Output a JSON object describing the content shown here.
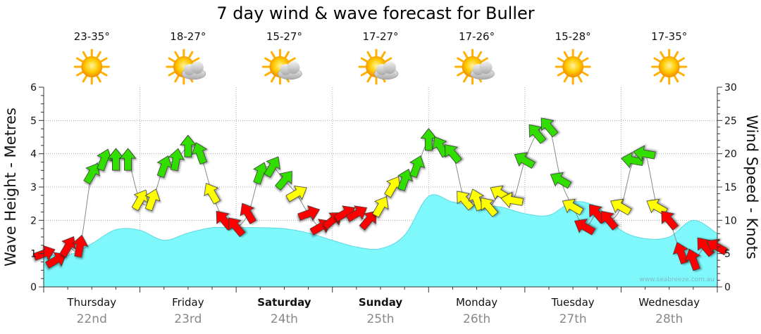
{
  "chart_data": {
    "type": "area",
    "title": "7 day wind & wave forecast for Buller",
    "ylabel": "Wave Height - Metres",
    "y2label": "Wind Speed - Knots",
    "ylim": [
      0,
      6
    ],
    "y2lim": [
      0,
      30
    ],
    "yticks": [
      "0",
      "1",
      "2",
      "3",
      "4",
      "5",
      "6"
    ],
    "y2ticks": [
      "0",
      "5",
      "10",
      "15",
      "20",
      "25",
      "30"
    ],
    "days": [
      {
        "name": "Thursday",
        "date": "22nd",
        "temp": "23-35°",
        "weather": "sunny",
        "bold": false
      },
      {
        "name": "Friday",
        "date": "23rd",
        "temp": "18-27°",
        "weather": "partly-cloudy",
        "bold": false
      },
      {
        "name": "Saturday",
        "date": "24th",
        "temp": "15-27°",
        "weather": "partly-cloudy",
        "bold": true
      },
      {
        "name": "Sunday",
        "date": "25th",
        "temp": "17-27°",
        "weather": "partly-cloudy",
        "bold": true
      },
      {
        "name": "Monday",
        "date": "26th",
        "temp": "17-26°",
        "weather": "partly-cloudy",
        "bold": false
      },
      {
        "name": "Tuesday",
        "date": "27th",
        "temp": "15-28°",
        "weather": "sunny",
        "bold": false
      },
      {
        "name": "Wednesday",
        "date": "28th",
        "temp": "17-35°",
        "weather": "sunny",
        "bold": false
      }
    ],
    "wave_series": {
      "day_offset": [
        0.0,
        0.25,
        0.5,
        0.75,
        1.0,
        1.25,
        1.5,
        1.75,
        2.0,
        2.25,
        2.5,
        2.75,
        3.0,
        3.25,
        3.5,
        3.75,
        4.0,
        4.25,
        4.5,
        4.75,
        5.0,
        5.25,
        5.5,
        5.75,
        6.0,
        6.25,
        6.5,
        6.75,
        7.0
      ],
      "values": [
        1.0,
        0.95,
        1.3,
        1.72,
        1.7,
        1.4,
        1.62,
        1.78,
        1.78,
        1.78,
        1.75,
        1.62,
        1.4,
        1.2,
        1.15,
        1.55,
        2.72,
        2.55,
        2.45,
        2.4,
        2.2,
        2.15,
        2.55,
        2.4,
        1.7,
        1.45,
        1.5,
        2.0,
        1.6
      ]
    },
    "wind_series": {
      "colors": {
        "light": "#33dd00",
        "moderate": "#ffff00",
        "strong": "#ff0000"
      },
      "day_offset": [
        0.0,
        0.125,
        0.25,
        0.375,
        0.5,
        0.625,
        0.75,
        0.875,
        1.0,
        1.125,
        1.25,
        1.375,
        1.5,
        1.625,
        1.75,
        1.875,
        2.0,
        2.125,
        2.25,
        2.375,
        2.5,
        2.625,
        2.75,
        2.875,
        3.0,
        3.125,
        3.25,
        3.375,
        3.5,
        3.625,
        3.75,
        3.875,
        4.0,
        4.125,
        4.25,
        4.375,
        4.5,
        4.625,
        4.75,
        4.875,
        5.0,
        5.125,
        5.25,
        5.375,
        5.5,
        5.625,
        5.75,
        5.875,
        6.0,
        6.125,
        6.25,
        6.375,
        6.5,
        6.625,
        6.75,
        6.875,
        7.0
      ],
      "knots": [
        5,
        4,
        6,
        6,
        17,
        19,
        19,
        19,
        13,
        13,
        18,
        19,
        21,
        20,
        14,
        10,
        9,
        11,
        17,
        18,
        16,
        14,
        11,
        9,
        10,
        11,
        11,
        10,
        12,
        15,
        16,
        18,
        22,
        21,
        20,
        13,
        13,
        12,
        14,
        13,
        19,
        23,
        24,
        16,
        12,
        9,
        11,
        10,
        12,
        19,
        20,
        12,
        10,
        5,
        4,
        6,
        6
      ],
      "direction_deg": [
        70,
        60,
        30,
        10,
        30,
        20,
        0,
        0,
        30,
        20,
        20,
        10,
        0,
        340,
        330,
        320,
        320,
        330,
        20,
        30,
        40,
        60,
        70,
        60,
        50,
        60,
        60,
        40,
        30,
        30,
        20,
        20,
        0,
        330,
        320,
        320,
        340,
        320,
        300,
        280,
        300,
        320,
        320,
        300,
        300,
        300,
        320,
        320,
        300,
        280,
        280,
        300,
        320,
        340,
        340,
        320,
        300
      ]
    },
    "credit": "www.seabreeze.com.au"
  }
}
